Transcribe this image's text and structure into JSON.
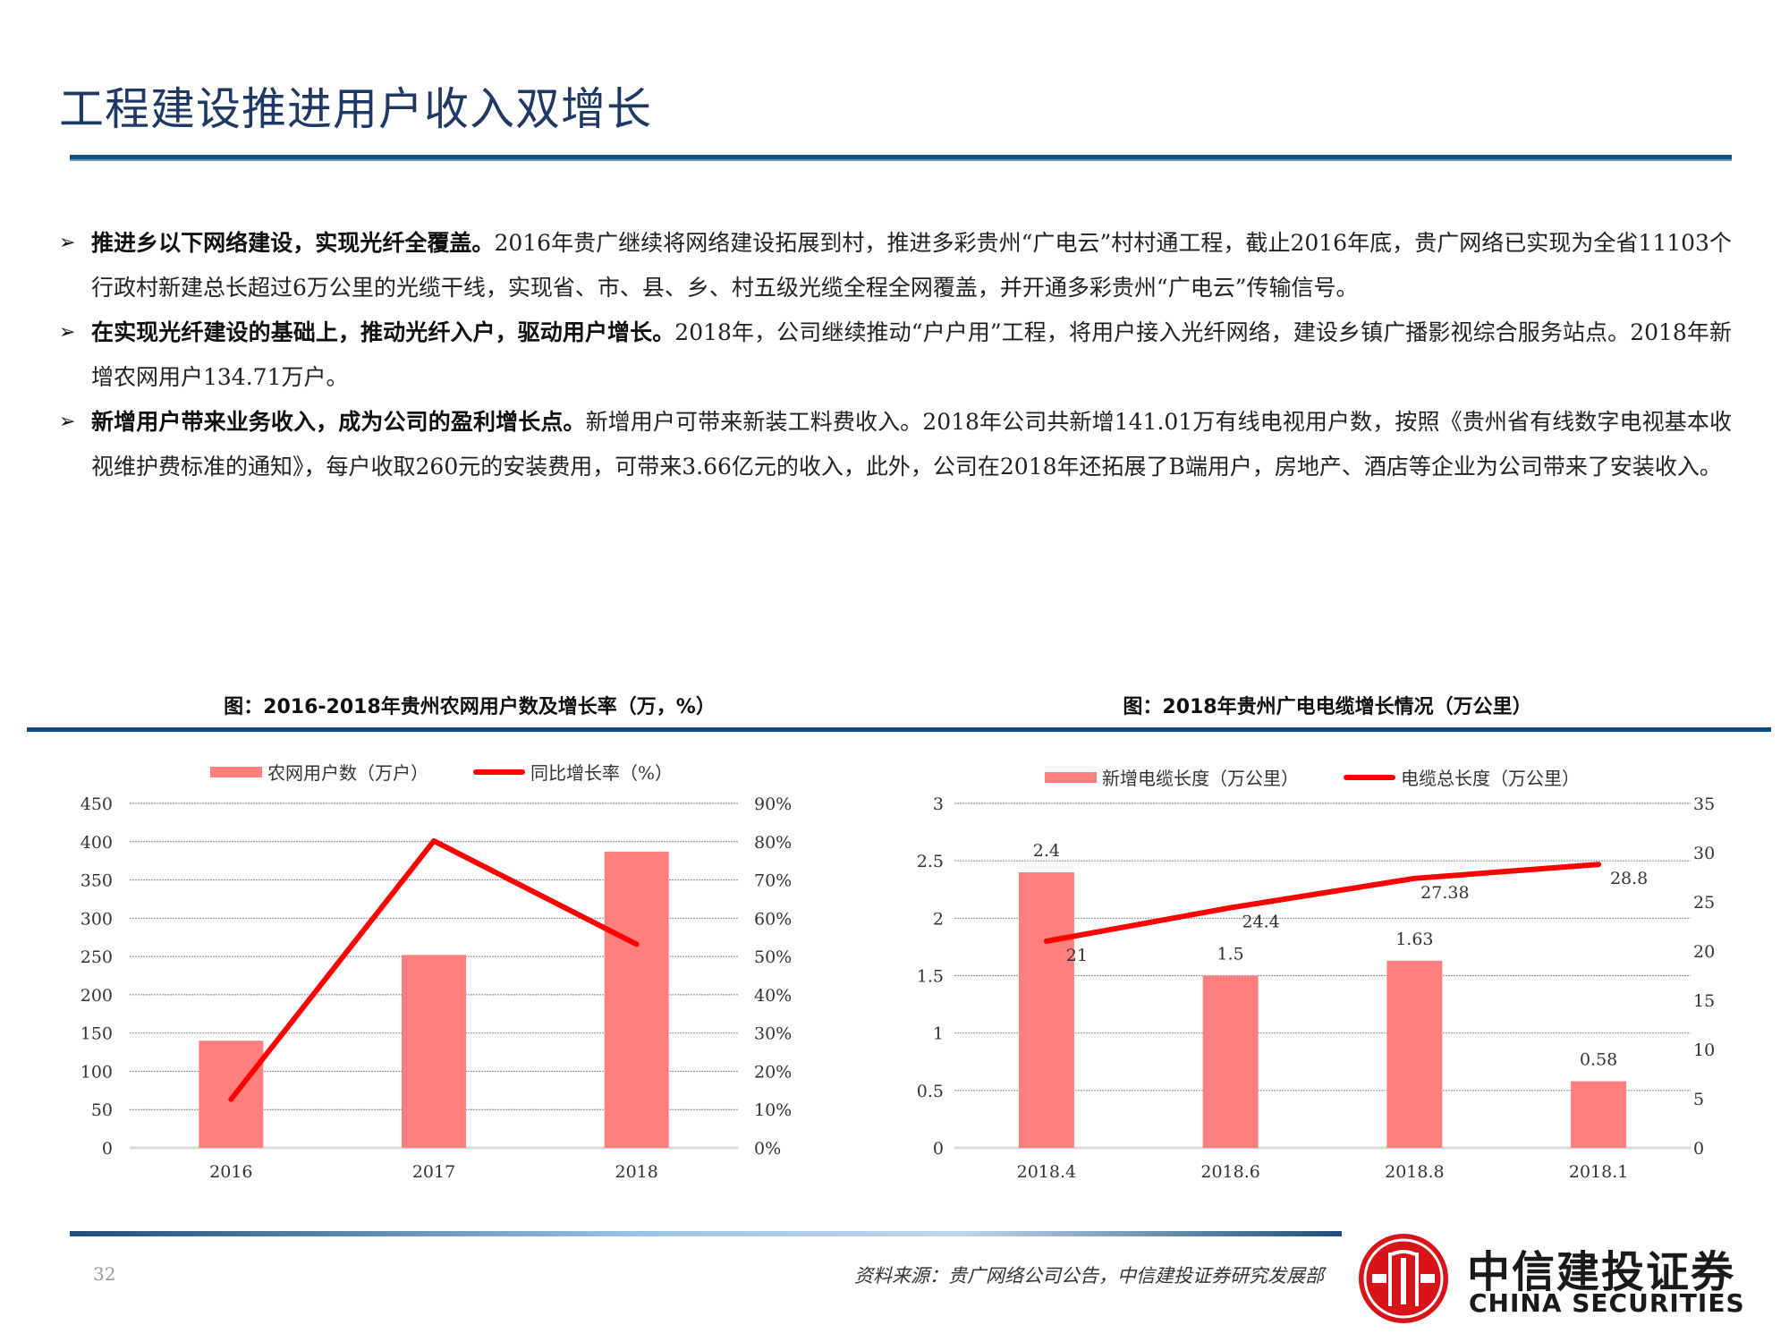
{
  "header": {
    "title": "工程建设推进用户收入双增长"
  },
  "bullets": [
    {
      "marker": "➢",
      "lead": "推进乡以下网络建设，实现光纤全覆盖。",
      "body": "2016年贵广继续将网络建设拓展到村，推进多彩贵州“广电云”村村通工程，截止2016年底，贵广网络已实现为全省11103个行政村新建总长超过6万公里的光缆干线，实现省、市、县、乡、村五级光缆全程全网覆盖，并开通多彩贵州“广电云”传输信号。"
    },
    {
      "marker": "➢",
      "lead": "在实现光纤建设的基础上，推动光纤入户，驱动用户增长。",
      "body": "2018年，公司继续推动“户户用”工程，将用户接入光纤网络，建设乡镇广播影视综合服务站点。2018年新增农网用户134.71万户。"
    },
    {
      "marker": "➢",
      "lead": "新增用户带来业务收入，成为公司的盈利增长点。",
      "body": "新增用户可带来新装工料费收入。2018年公司共新增141.01万有线电视用户数，按照《贵州省有线数字电视基本收视维护费标准的通知》，每户收取260元的安装费用，可带来3.66亿元的收入，此外，公司在2018年还拓展了B端用户，房地产、酒店等企业为公司带来了安装收入。"
    }
  ],
  "colors": {
    "title": "#1F3864",
    "rule": "#0F5280",
    "bar": "#FF7F7F",
    "line": "#FF0000",
    "grid": "#999999",
    "logo_red": "#D7141A"
  },
  "chart_data": [
    {
      "type": "bar+line",
      "title": "图：2016-2018年贵州农网用户数及增长率（万，%）",
      "categories": [
        "2016",
        "2017",
        "2018"
      ],
      "series": [
        {
          "name": "农网用户数（万户）",
          "type": "bar",
          "axis": "left",
          "values": [
            140,
            252,
            387
          ]
        },
        {
          "name": "同比增长率（%）",
          "type": "line",
          "axis": "right",
          "values": [
            12.7,
            80.2,
            53.2
          ]
        }
      ],
      "left_axis": {
        "ylim": [
          0,
          450
        ],
        "ticks": [
          "0",
          "50",
          "100",
          "150",
          "200",
          "250",
          "300",
          "350",
          "400",
          "450"
        ]
      },
      "right_axis": {
        "ylim": [
          0,
          90
        ],
        "ticks": [
          "0%",
          "10%",
          "20%",
          "30%",
          "40%",
          "50%",
          "60%",
          "70%",
          "80%",
          "90%"
        ]
      },
      "grid": true,
      "legend_position": "top"
    },
    {
      "type": "bar+line",
      "title": "图：2018年贵州广电电缆增长情况（万公里）",
      "categories": [
        "2018.4",
        "2018.6",
        "2018.8",
        "2018.1"
      ],
      "series": [
        {
          "name": "新增电缆长度（万公里）",
          "type": "bar",
          "axis": "left",
          "values": [
            2.4,
            1.5,
            1.63,
            0.58
          ],
          "labels": [
            "2.4",
            "1.5",
            "1.63",
            "0.58"
          ]
        },
        {
          "name": "电缆总长度（万公里）",
          "type": "line",
          "axis": "right",
          "values": [
            21,
            24.4,
            27.38,
            28.8
          ],
          "labels": [
            "21",
            "24.4",
            "27.38",
            "28.8"
          ]
        }
      ],
      "left_axis": {
        "ylim": [
          0,
          3
        ],
        "ticks": [
          "0",
          "0.5",
          "1",
          "1.5",
          "2",
          "2.5",
          "3"
        ]
      },
      "right_axis": {
        "ylim": [
          0,
          35
        ],
        "ticks": [
          "0",
          "5",
          "10",
          "15",
          "20",
          "25",
          "30",
          "35"
        ]
      },
      "grid": true,
      "legend_position": "top"
    }
  ],
  "footer": {
    "page_number": "32",
    "source": "资料来源：贵广网络公司公告，中信建投证券研究发展部",
    "logo_cn": "中信建投证券",
    "logo_en": "CHINA SECURITIES"
  }
}
